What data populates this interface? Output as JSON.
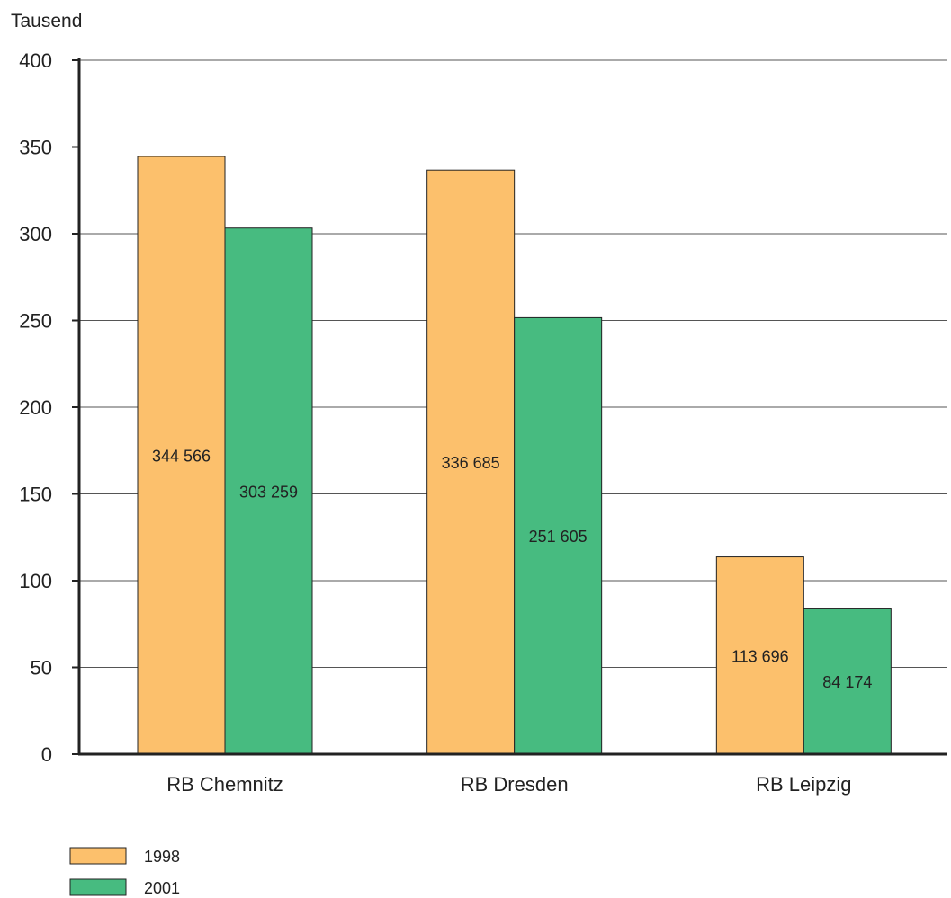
{
  "chart_data": {
    "type": "bar",
    "ylabel": "Tausend",
    "ylim": [
      0,
      400
    ],
    "yticks": [
      0,
      50,
      100,
      150,
      200,
      250,
      300,
      350,
      400
    ],
    "grid": true,
    "legend_position": "bottom-left",
    "categories": [
      "RB Chemnitz",
      "RB Dresden",
      "RB Leipzig"
    ],
    "series": [
      {
        "name": "1998",
        "color": "#fcc06c",
        "values": [
          344.566,
          336.685,
          113.696
        ],
        "labels": [
          "344 566",
          "336 685",
          "113 696"
        ]
      },
      {
        "name": "2001",
        "color": "#47bb80",
        "values": [
          303.259,
          251.605,
          84.174
        ],
        "labels": [
          "303 259",
          "251 605",
          "84 174"
        ]
      }
    ]
  }
}
